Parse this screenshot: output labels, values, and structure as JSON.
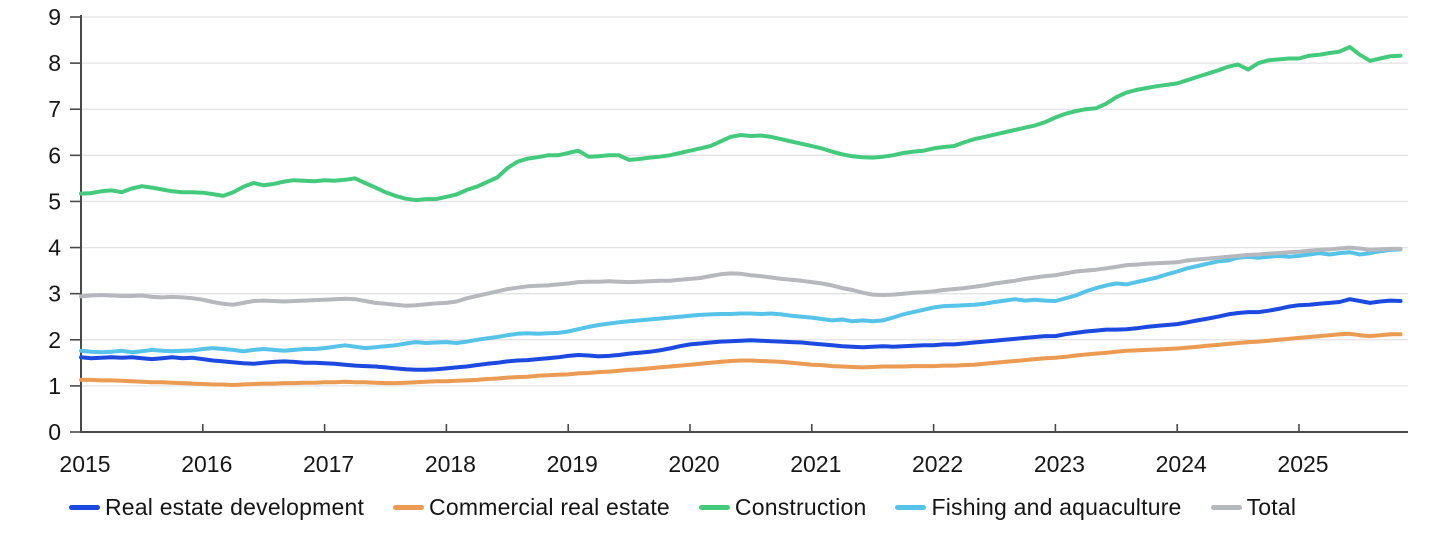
{
  "chart_data": {
    "type": "line",
    "title": "",
    "xlabel": "",
    "ylabel": "",
    "x_unit": "monthly",
    "x_start": "2015-01",
    "x_end": "2025-11",
    "xticks": [
      "2015",
      "2016",
      "2017",
      "2018",
      "2019",
      "2020",
      "2021",
      "2022",
      "2023",
      "2024",
      "2025"
    ],
    "yticks": [
      "0",
      "1",
      "2",
      "3",
      "4",
      "5",
      "6",
      "7",
      "8",
      "9"
    ],
    "ylim": [
      0,
      9
    ],
    "grid": "horizontal",
    "legend_position": "bottom",
    "series": [
      {
        "name": "Real estate development",
        "color": "#1c49e0",
        "values": [
          1.62,
          1.6,
          1.61,
          1.62,
          1.61,
          1.62,
          1.6,
          1.58,
          1.6,
          1.62,
          1.6,
          1.61,
          1.58,
          1.55,
          1.53,
          1.51,
          1.49,
          1.48,
          1.5,
          1.52,
          1.53,
          1.52,
          1.5,
          1.5,
          1.49,
          1.48,
          1.46,
          1.44,
          1.43,
          1.42,
          1.4,
          1.38,
          1.36,
          1.35,
          1.35,
          1.36,
          1.38,
          1.4,
          1.42,
          1.45,
          1.48,
          1.5,
          1.53,
          1.55,
          1.56,
          1.58,
          1.6,
          1.62,
          1.65,
          1.67,
          1.66,
          1.64,
          1.65,
          1.67,
          1.7,
          1.72,
          1.74,
          1.77,
          1.81,
          1.86,
          1.9,
          1.92,
          1.94,
          1.96,
          1.97,
          1.98,
          1.99,
          1.98,
          1.97,
          1.96,
          1.95,
          1.94,
          1.92,
          1.9,
          1.88,
          1.86,
          1.85,
          1.84,
          1.85,
          1.86,
          1.85,
          1.86,
          1.87,
          1.88,
          1.88,
          1.9,
          1.9,
          1.92,
          1.94,
          1.96,
          1.98,
          2.0,
          2.02,
          2.04,
          2.06,
          2.08,
          2.08,
          2.12,
          2.15,
          2.18,
          2.2,
          2.22,
          2.22,
          2.23,
          2.25,
          2.28,
          2.3,
          2.32,
          2.34,
          2.38,
          2.42,
          2.46,
          2.5,
          2.55,
          2.58,
          2.6,
          2.6,
          2.63,
          2.67,
          2.72,
          2.75,
          2.76,
          2.78,
          2.8,
          2.82,
          2.88,
          2.84,
          2.8,
          2.83,
          2.85,
          2.84
        ]
      },
      {
        "name": "Commercial real estate",
        "color": "#eb9b52",
        "values": [
          1.13,
          1.13,
          1.12,
          1.12,
          1.11,
          1.1,
          1.09,
          1.08,
          1.08,
          1.07,
          1.06,
          1.05,
          1.04,
          1.03,
          1.03,
          1.02,
          1.03,
          1.04,
          1.05,
          1.05,
          1.06,
          1.06,
          1.07,
          1.07,
          1.08,
          1.08,
          1.09,
          1.08,
          1.08,
          1.07,
          1.06,
          1.06,
          1.07,
          1.08,
          1.09,
          1.1,
          1.1,
          1.11,
          1.12,
          1.13,
          1.15,
          1.16,
          1.18,
          1.19,
          1.2,
          1.22,
          1.23,
          1.24,
          1.25,
          1.27,
          1.28,
          1.3,
          1.31,
          1.33,
          1.35,
          1.36,
          1.38,
          1.4,
          1.42,
          1.44,
          1.46,
          1.48,
          1.5,
          1.52,
          1.54,
          1.55,
          1.55,
          1.54,
          1.53,
          1.52,
          1.5,
          1.48,
          1.46,
          1.45,
          1.43,
          1.42,
          1.41,
          1.4,
          1.41,
          1.42,
          1.42,
          1.42,
          1.43,
          1.43,
          1.43,
          1.44,
          1.44,
          1.45,
          1.46,
          1.48,
          1.5,
          1.52,
          1.54,
          1.56,
          1.58,
          1.6,
          1.61,
          1.63,
          1.66,
          1.68,
          1.7,
          1.72,
          1.74,
          1.76,
          1.77,
          1.78,
          1.79,
          1.8,
          1.81,
          1.83,
          1.85,
          1.87,
          1.89,
          1.91,
          1.93,
          1.95,
          1.96,
          1.98,
          2.0,
          2.02,
          2.04,
          2.06,
          2.08,
          2.1,
          2.12,
          2.13,
          2.1,
          2.08,
          2.1,
          2.12,
          2.12
        ]
      },
      {
        "name": "Construction",
        "color": "#44ca7d",
        "values": [
          5.17,
          5.18,
          5.22,
          5.24,
          5.2,
          5.28,
          5.33,
          5.3,
          5.26,
          5.22,
          5.2,
          5.2,
          5.19,
          5.16,
          5.12,
          5.2,
          5.32,
          5.4,
          5.35,
          5.38,
          5.43,
          5.46,
          5.45,
          5.44,
          5.46,
          5.45,
          5.47,
          5.5,
          5.4,
          5.3,
          5.2,
          5.12,
          5.06,
          5.03,
          5.05,
          5.05,
          5.1,
          5.15,
          5.25,
          5.32,
          5.42,
          5.52,
          5.72,
          5.86,
          5.93,
          5.96,
          6.0,
          6.0,
          6.05,
          6.1,
          5.97,
          5.98,
          6.0,
          6.0,
          5.9,
          5.92,
          5.95,
          5.97,
          6.0,
          6.05,
          6.1,
          6.15,
          6.2,
          6.3,
          6.4,
          6.44,
          6.42,
          6.43,
          6.4,
          6.35,
          6.3,
          6.25,
          6.2,
          6.15,
          6.08,
          6.02,
          5.98,
          5.96,
          5.95,
          5.97,
          6.0,
          6.05,
          6.08,
          6.1,
          6.15,
          6.18,
          6.2,
          6.28,
          6.35,
          6.4,
          6.45,
          6.5,
          6.55,
          6.6,
          6.65,
          6.72,
          6.82,
          6.9,
          6.96,
          7.0,
          7.02,
          7.12,
          7.26,
          7.36,
          7.42,
          7.46,
          7.5,
          7.53,
          7.56,
          7.63,
          7.7,
          7.77,
          7.84,
          7.92,
          7.97,
          7.86,
          8.0,
          8.06,
          8.08,
          8.1,
          8.1,
          8.16,
          8.18,
          8.22,
          8.25,
          8.35,
          8.18,
          8.05,
          8.1,
          8.15,
          8.16
        ]
      },
      {
        "name": "Fishing and aquaculture",
        "color": "#56c3e8",
        "values": [
          1.76,
          1.74,
          1.73,
          1.74,
          1.76,
          1.73,
          1.75,
          1.78,
          1.76,
          1.75,
          1.76,
          1.77,
          1.8,
          1.82,
          1.8,
          1.78,
          1.75,
          1.78,
          1.8,
          1.78,
          1.76,
          1.78,
          1.8,
          1.8,
          1.82,
          1.85,
          1.88,
          1.85,
          1.82,
          1.84,
          1.86,
          1.88,
          1.92,
          1.95,
          1.93,
          1.94,
          1.95,
          1.93,
          1.96,
          2.0,
          2.03,
          2.06,
          2.1,
          2.13,
          2.14,
          2.13,
          2.14,
          2.15,
          2.18,
          2.23,
          2.28,
          2.32,
          2.35,
          2.38,
          2.4,
          2.42,
          2.44,
          2.46,
          2.48,
          2.5,
          2.52,
          2.54,
          2.55,
          2.56,
          2.56,
          2.57,
          2.57,
          2.56,
          2.57,
          2.55,
          2.52,
          2.5,
          2.48,
          2.45,
          2.42,
          2.44,
          2.4,
          2.42,
          2.4,
          2.42,
          2.48,
          2.55,
          2.6,
          2.65,
          2.7,
          2.73,
          2.74,
          2.75,
          2.76,
          2.78,
          2.82,
          2.85,
          2.88,
          2.85,
          2.87,
          2.85,
          2.84,
          2.9,
          2.96,
          3.05,
          3.12,
          3.18,
          3.22,
          3.2,
          3.25,
          3.3,
          3.35,
          3.42,
          3.48,
          3.55,
          3.6,
          3.65,
          3.7,
          3.72,
          3.78,
          3.8,
          3.78,
          3.8,
          3.82,
          3.8,
          3.82,
          3.85,
          3.88,
          3.85,
          3.88,
          3.9,
          3.85,
          3.88,
          3.92,
          3.95,
          3.96
        ]
      },
      {
        "name": "Total",
        "color": "#b5b8bd",
        "values": [
          2.94,
          2.96,
          2.97,
          2.96,
          2.95,
          2.95,
          2.96,
          2.93,
          2.92,
          2.93,
          2.92,
          2.9,
          2.87,
          2.82,
          2.78,
          2.76,
          2.8,
          2.84,
          2.85,
          2.84,
          2.83,
          2.84,
          2.85,
          2.86,
          2.87,
          2.88,
          2.89,
          2.88,
          2.84,
          2.8,
          2.78,
          2.76,
          2.74,
          2.75,
          2.77,
          2.79,
          2.8,
          2.83,
          2.9,
          2.95,
          3.0,
          3.05,
          3.1,
          3.13,
          3.16,
          3.17,
          3.18,
          3.2,
          3.22,
          3.25,
          3.26,
          3.26,
          3.27,
          3.26,
          3.25,
          3.26,
          3.27,
          3.28,
          3.28,
          3.3,
          3.32,
          3.34,
          3.38,
          3.42,
          3.44,
          3.43,
          3.4,
          3.38,
          3.35,
          3.32,
          3.3,
          3.28,
          3.25,
          3.22,
          3.18,
          3.12,
          3.08,
          3.02,
          2.98,
          2.97,
          2.98,
          3.0,
          3.02,
          3.03,
          3.05,
          3.08,
          3.1,
          3.12,
          3.15,
          3.18,
          3.22,
          3.25,
          3.28,
          3.32,
          3.35,
          3.38,
          3.4,
          3.44,
          3.48,
          3.5,
          3.52,
          3.55,
          3.58,
          3.62,
          3.63,
          3.65,
          3.66,
          3.67,
          3.68,
          3.72,
          3.74,
          3.76,
          3.78,
          3.8,
          3.82,
          3.84,
          3.85,
          3.87,
          3.88,
          3.9,
          3.91,
          3.93,
          3.95,
          3.96,
          3.98,
          4.0,
          3.98,
          3.95,
          3.96,
          3.97,
          3.97
        ]
      }
    ]
  },
  "style": {
    "axis_color": "#4a4a4a",
    "gridline_color": "#e3e3e5",
    "tick_label_color": "#161616",
    "background": "#ffffff"
  }
}
